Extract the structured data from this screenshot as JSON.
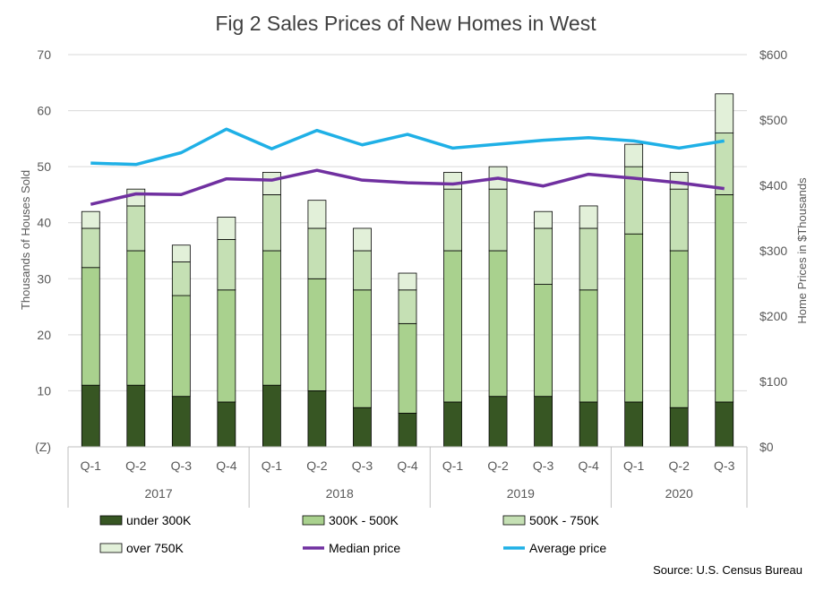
{
  "chart_data": {
    "type": "bar",
    "stacked": true,
    "title": "Fig 2 Sales Prices of New Homes in West",
    "ylabel_left": "Thousands of Houses Sold",
    "ylabel_right": "Home Prices in $Thousands",
    "ylim_left": [
      0,
      70
    ],
    "yticks_left": [
      "(Z)",
      "10",
      "20",
      "30",
      "40",
      "50",
      "60",
      "70"
    ],
    "ylim_right": [
      0,
      600
    ],
    "yticks_right": [
      "$0",
      "$100",
      "$200",
      "$300",
      "$400",
      "$500",
      "$600"
    ],
    "grid": true,
    "legend_position": "bottom",
    "categories": [
      "Q-1",
      "Q-2",
      "Q-3",
      "Q-4",
      "Q-1",
      "Q-2",
      "Q-3",
      "Q-4",
      "Q-1",
      "Q-2",
      "Q-3",
      "Q-4",
      "Q-1",
      "Q-2",
      "Q-3"
    ],
    "years": [
      {
        "label": "2017",
        "count": 4
      },
      {
        "label": "2018",
        "count": 4
      },
      {
        "label": "2019",
        "count": 4
      },
      {
        "label": "2020",
        "count": 3
      }
    ],
    "bar_series": [
      {
        "name": "under 300K",
        "color": "#375623",
        "values": [
          11,
          11,
          9,
          8,
          11,
          10,
          7,
          6,
          8,
          9,
          9,
          8,
          8,
          7,
          8
        ]
      },
      {
        "name": "300K - 500K",
        "color": "#a9d18e",
        "values": [
          21,
          24,
          18,
          20,
          24,
          20,
          21,
          16,
          27,
          26,
          20,
          20,
          30,
          28,
          37
        ]
      },
      {
        "name": "500K - 750K",
        "color": "#c5e0b4",
        "values": [
          7,
          8,
          6,
          9,
          10,
          9,
          7,
          6,
          11,
          11,
          10,
          11,
          12,
          11,
          11
        ]
      },
      {
        "name": "over 750K",
        "color": "#e2f0d9",
        "values": [
          3,
          3,
          3,
          4,
          4,
          5,
          4,
          3,
          3,
          4,
          3,
          4,
          4,
          3,
          7
        ]
      }
    ],
    "line_series": [
      {
        "name": "Median price",
        "color": "#7030a0",
        "axis": "right",
        "values": [
          371,
          387,
          386,
          410,
          408,
          423,
          408,
          404,
          402,
          411,
          399,
          417,
          411,
          404,
          395
        ]
      },
      {
        "name": "Average price",
        "color": "#1fb0e6",
        "axis": "right",
        "values": [
          434,
          432,
          450,
          486,
          456,
          484,
          462,
          478,
          457,
          463,
          469,
          473,
          468,
          457,
          468
        ]
      }
    ],
    "source": "Source: U.S. Census Bureau"
  }
}
